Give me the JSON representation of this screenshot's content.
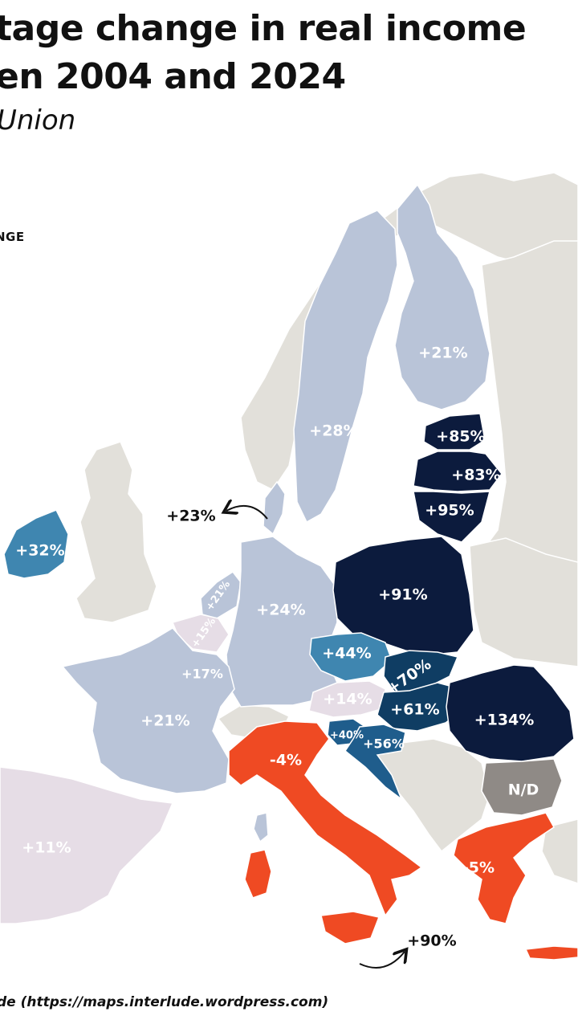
{
  "title_line1": "tage change in real income",
  "title_line2": "en 2004 and 2024",
  "subtitle": "Union",
  "legend_title": "NGE",
  "source": "de (https://maps.interlude.wordpress.com)",
  "colors": {
    "non_eu_land": "#e2e0da",
    "very_low_light": "#e6dde6",
    "light": "#b9c4d8",
    "mid": "#3f86b0",
    "strong": "#1f5d8c",
    "deep": "#0f3d63",
    "darkest": "#0c1b3d",
    "negative": "#ef4a23",
    "no_data": "#8f8a86"
  },
  "regions": [
    {
      "name": "Sweden",
      "label": "+28%"
    },
    {
      "name": "Finland",
      "label": "+21%"
    },
    {
      "name": "Estonia",
      "label": "+85%"
    },
    {
      "name": "Latvia",
      "label": "+83%"
    },
    {
      "name": "Lithuania",
      "label": "+95%"
    },
    {
      "name": "Denmark",
      "label": "+23%"
    },
    {
      "name": "Ireland",
      "label": "+32%"
    },
    {
      "name": "Netherlands",
      "label": "+21%"
    },
    {
      "name": "Belgium",
      "label": "+15%"
    },
    {
      "name": "Luxembourg",
      "label": "+17%"
    },
    {
      "name": "Germany",
      "label": "+24%"
    },
    {
      "name": "Poland",
      "label": "+91%"
    },
    {
      "name": "Czechia",
      "label": "+44%"
    },
    {
      "name": "Slovakia",
      "label": "+70%"
    },
    {
      "name": "Austria",
      "label": "+14%"
    },
    {
      "name": "Hungary",
      "label": "+61%"
    },
    {
      "name": "Romania",
      "label": "+134%"
    },
    {
      "name": "France",
      "label": "+21%"
    },
    {
      "name": "Slovenia",
      "label": "+40%"
    },
    {
      "name": "Croatia",
      "label": "+56%"
    },
    {
      "name": "Italy",
      "label": "-4%"
    },
    {
      "name": "Bulgaria",
      "label": "N/D"
    },
    {
      "name": "Greece",
      "label": "-5%"
    },
    {
      "name": "Spain",
      "label": "+11%"
    },
    {
      "name": "Malta",
      "label": "+90%"
    }
  ]
}
